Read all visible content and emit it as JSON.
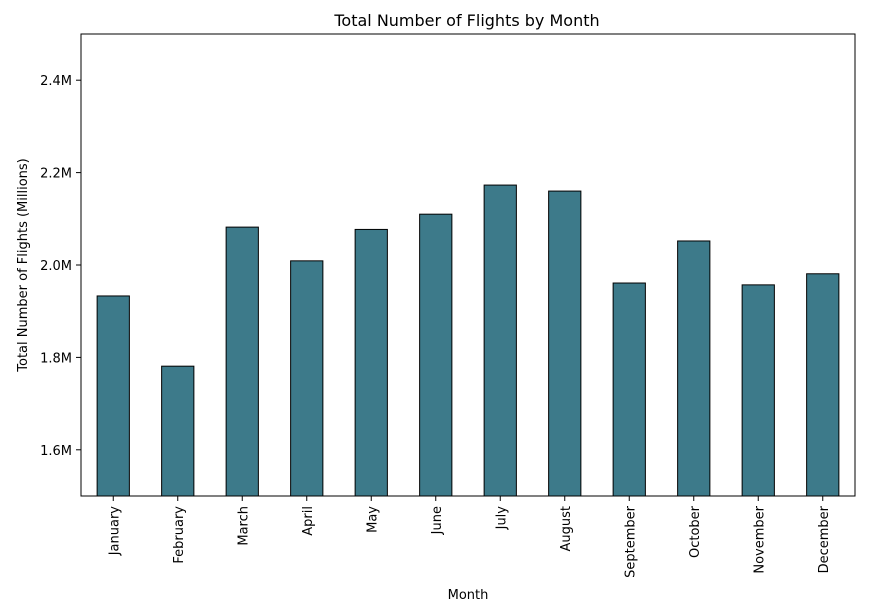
{
  "chart_data": {
    "type": "bar",
    "title": "Total Number of Flights by Month",
    "xlabel": "Month",
    "ylabel": "Total Number of Flights (Millions)",
    "categories": [
      "January",
      "February",
      "March",
      "April",
      "May",
      "June",
      "July",
      "August",
      "September",
      "October",
      "November",
      "December"
    ],
    "values": [
      1933000,
      1781000,
      2082000,
      2009000,
      2077000,
      2110000,
      2173000,
      2160000,
      1961000,
      2052000,
      1957000,
      1981000
    ],
    "ylim": [
      1500000,
      2500000
    ],
    "yticks": [
      1600000,
      1800000,
      2000000,
      2200000,
      2400000
    ],
    "ytick_labels": [
      "1.6M",
      "1.8M",
      "2.0M",
      "2.2M",
      "2.4M"
    ],
    "grid": false,
    "legend": "none",
    "bar_color": "#3d7a8a",
    "edge_color": "#000000"
  }
}
